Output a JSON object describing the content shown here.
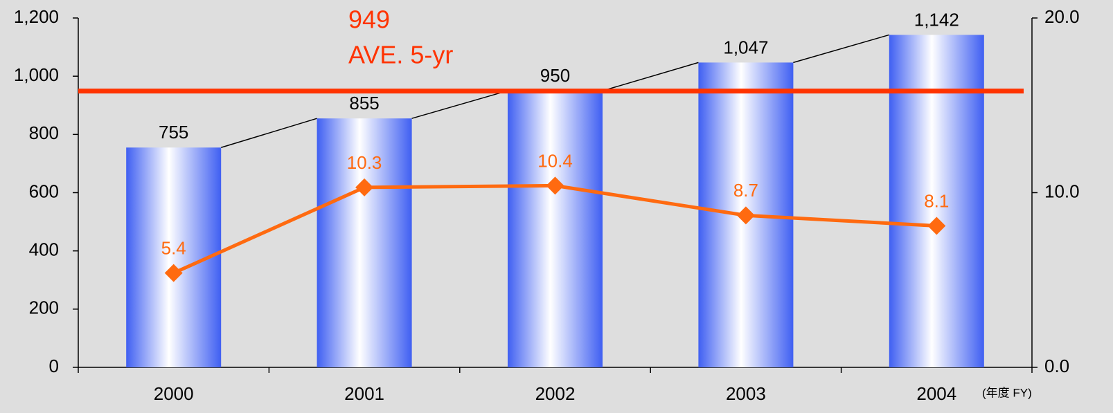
{
  "chart_data": {
    "type": "bar",
    "categories": [
      "2000",
      "2001",
      "2002",
      "2003",
      "2004"
    ],
    "xlabel": "(年度 FY)",
    "series": [
      {
        "type": "bar",
        "color": "#3f5ff2",
        "values": [
          755,
          855,
          950,
          1047,
          1142
        ],
        "value_labels": [
          "755",
          "855",
          "950",
          "1,047",
          "1,142"
        ]
      },
      {
        "type": "line",
        "axis": "y2",
        "color": "#ff6a10",
        "values": [
          5.4,
          10.3,
          10.4,
          8.7,
          8.1
        ]
      }
    ],
    "ylim": [
      0,
      1200
    ],
    "yticks": [
      0,
      200,
      400,
      600,
      800,
      {
        "value": 1000,
        "label": "1,000"
      },
      {
        "value": 1200,
        "label": "1,200"
      }
    ],
    "y2lim": [
      0,
      20
    ],
    "y2ticks": [
      {
        "value": 0,
        "label": "0.0"
      },
      {
        "value": 10,
        "label": "10.0"
      },
      {
        "value": 20,
        "label": "20.0"
      }
    ],
    "reference_line": {
      "value": 949,
      "label": "AVE. 5-yr",
      "color": "#ff3300"
    }
  }
}
